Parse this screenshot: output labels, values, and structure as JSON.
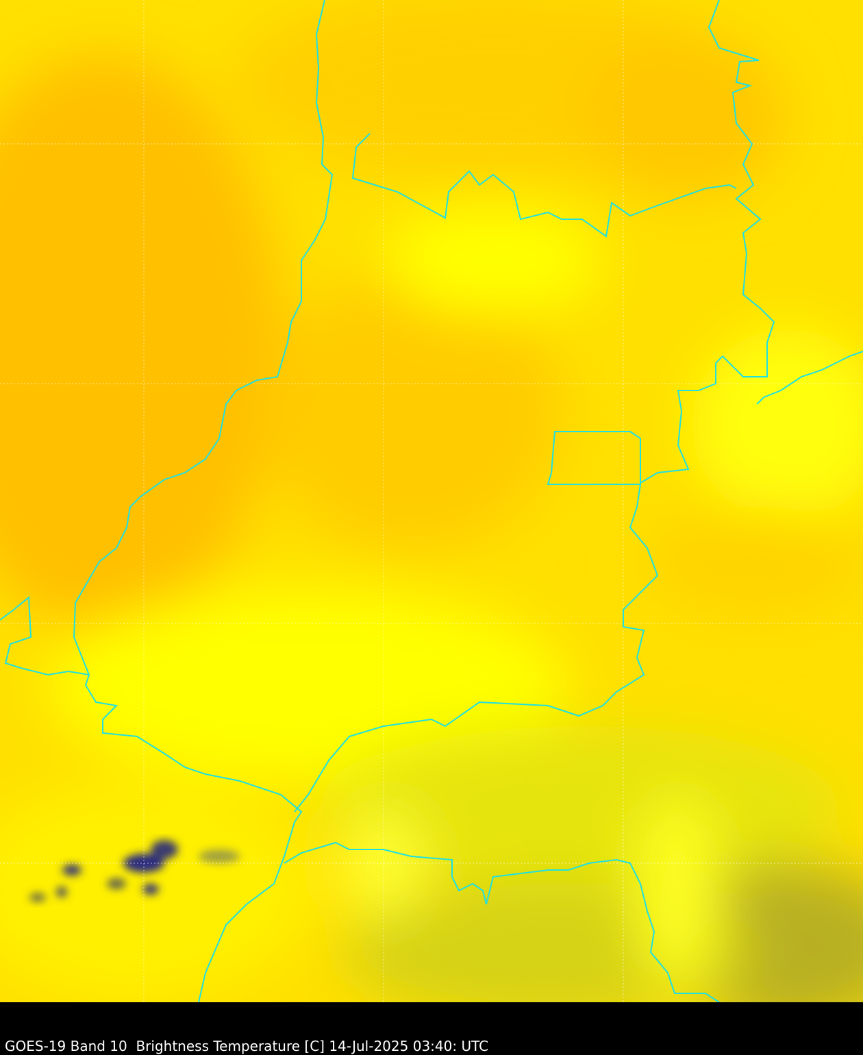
{
  "caption": "GOES-19 Band 10  Brightness Temperature [C] 14-Jul-2025 03:40: UTC",
  "colors": {
    "warm_orange": "#ffc800",
    "yellow": "#ffff00",
    "cool_olive": "#c8c020",
    "cold_cloud": "#1a1a6e",
    "border": "#20e0e0",
    "background": "#000000"
  }
}
